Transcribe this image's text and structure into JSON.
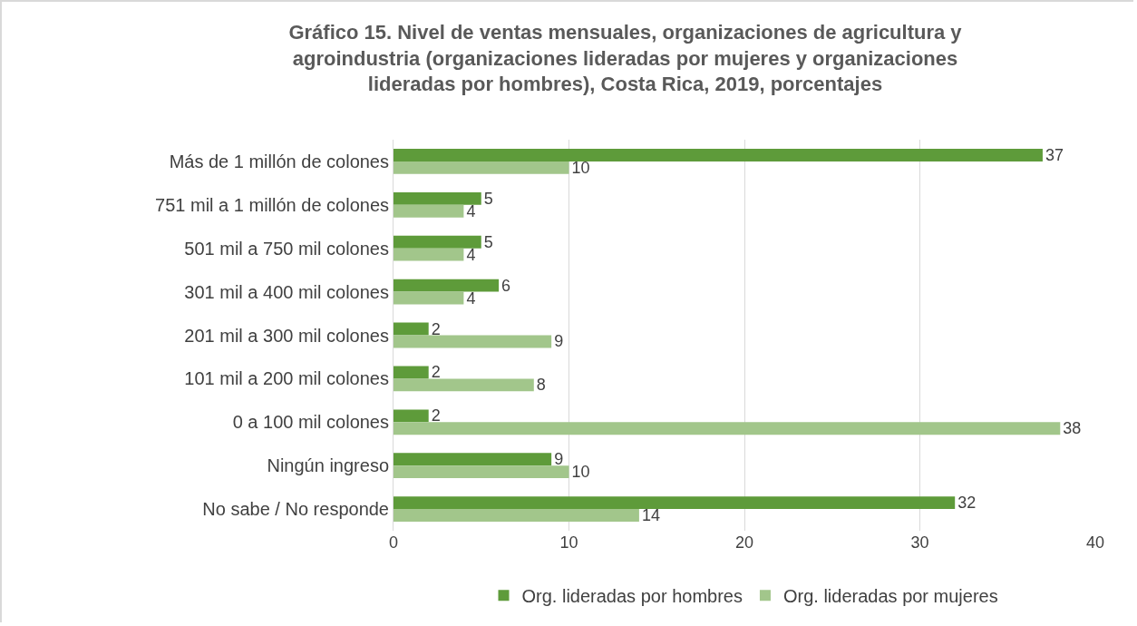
{
  "chart_data": {
    "type": "bar",
    "orientation": "horizontal",
    "title": "Gráfico 15. Nivel de ventas mensuales, organizaciones de agricultura y agroindustria (organizaciones lideradas por mujeres y organizaciones lideradas por hombres), Costa Rica, 2019, porcentajes",
    "categories": [
      "Más de 1 millón de colones",
      "751 mil a 1 millón de colones",
      "501 mil a 750 mil colones",
      "301 mil a 400 mil colones",
      "201 mil a 300 mil colones",
      "101 mil a 200 mil colones",
      "0 a 100 mil colones",
      "Ningún ingreso",
      "No sabe / No responde"
    ],
    "series": [
      {
        "name": "Org. lideradas por hombres",
        "color": "#5e9b3a",
        "values": [
          37,
          5,
          5,
          6,
          2,
          2,
          2,
          9,
          32
        ]
      },
      {
        "name": "Org. lideradas por mujeres",
        "color": "#a2c68b",
        "values": [
          10,
          4,
          4,
          4,
          9,
          8,
          38,
          10,
          14
        ]
      }
    ],
    "xlim": [
      0,
      40
    ],
    "xticks": [
      0,
      10,
      20,
      30,
      40
    ],
    "grid": "x",
    "legend": "bottom",
    "data_labels": true
  }
}
